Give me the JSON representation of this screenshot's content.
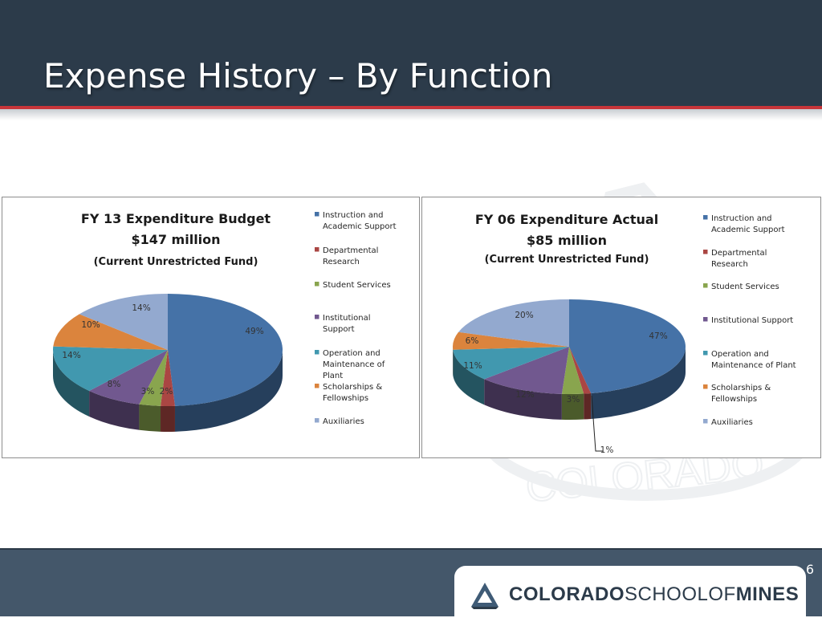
{
  "slide": {
    "title": "Expense History – By Function",
    "page_number": "6"
  },
  "logo": {
    "part1": "COLORADO",
    "part2": "SCHOOLOF",
    "part3": "MINES",
    "watermark_text": "COLORADO"
  },
  "colors": {
    "header": "#2c3b4a",
    "accent_red": "#c8353a",
    "footer": "#44576a"
  },
  "chart_data": [
    {
      "type": "pie",
      "title": "FY 13 Expenditure Budget",
      "subtitle": "$147 million",
      "fund": "(Current Unrestricted Fund)",
      "categories": [
        "Instruction and Academic Support",
        "Departmental Research",
        "Student Services",
        "Institutional Support",
        "Operation and Maintenance of Plant",
        "Scholarships & Fellowships",
        "Auxiliaries"
      ],
      "values": [
        49,
        2,
        3,
        8,
        14,
        10,
        14
      ],
      "labels": [
        "49%",
        "2%",
        "3%",
        "8%",
        "14%",
        "10%",
        "14%"
      ],
      "colors": [
        "#4572a7",
        "#aa4643",
        "#89a54e",
        "#71588f",
        "#4198af",
        "#db843d",
        "#93a9cf"
      ],
      "legend_placement": "right",
      "legend": [
        {
          "lines": [
            "Instruction and",
            "Academic Support"
          ]
        },
        {
          "lines": [
            "Departmental",
            "Research"
          ]
        },
        {
          "lines": [
            "Student Services"
          ]
        },
        {
          "lines": [
            "Institutional",
            "Support"
          ]
        },
        {
          "lines": [
            "Operation and",
            "Maintenance of",
            "Plant"
          ]
        },
        {
          "lines": [
            "Scholarships &",
            "Fellowships"
          ]
        },
        {
          "lines": [
            "Auxiliaries"
          ]
        }
      ]
    },
    {
      "type": "pie",
      "title": "FY 06 Expenditure Actual",
      "subtitle": "$85 million",
      "fund": "(Current Unrestricted Fund)",
      "categories": [
        "Instruction and Academic Support",
        "Departmental Research",
        "Student Services",
        "Institutional Support",
        "Operation and Maintenance of Plant",
        "Scholarships & Fellowships",
        "Auxiliaries"
      ],
      "values": [
        47,
        1,
        3,
        12,
        11,
        6,
        20
      ],
      "labels": [
        "47%",
        "1%",
        "3%",
        "12%",
        "11%",
        "6%",
        "20%"
      ],
      "colors": [
        "#4572a7",
        "#aa4643",
        "#89a54e",
        "#71588f",
        "#4198af",
        "#db843d",
        "#93a9cf"
      ],
      "legend_placement": "right",
      "legend": [
        {
          "lines": [
            "Instruction and",
            "Academic Support"
          ]
        },
        {
          "lines": [
            "Departmental",
            "Research"
          ]
        },
        {
          "lines": [
            "Student Services"
          ]
        },
        {
          "lines": [
            "Institutional Support"
          ]
        },
        {
          "lines": [
            "Operation and",
            "Maintenance of Plant"
          ]
        },
        {
          "lines": [
            "Scholarships &",
            "Fellowships"
          ]
        },
        {
          "lines": [
            "Auxiliaries"
          ]
        }
      ]
    }
  ]
}
